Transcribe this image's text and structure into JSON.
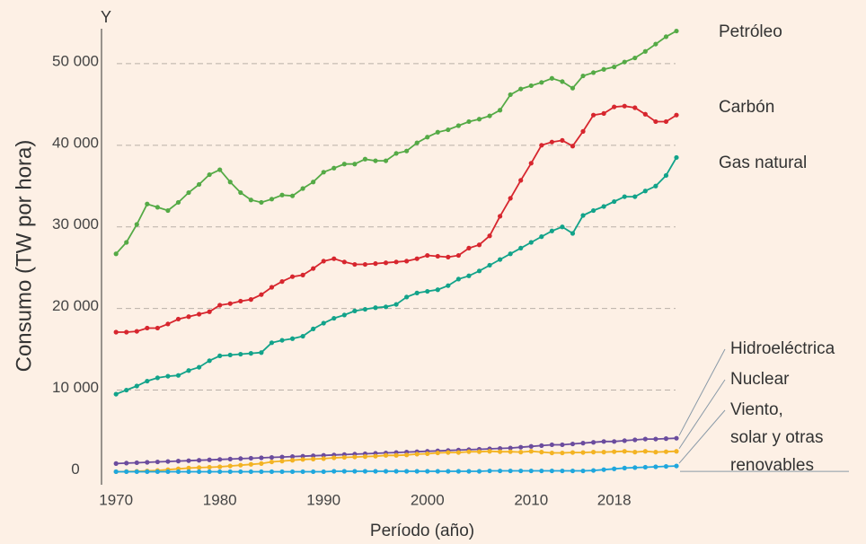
{
  "chart_data": {
    "type": "line",
    "axis_letter": "Y",
    "ylabel": "Consumo (TW por hora)",
    "xlabel": "Período (año)",
    "x": [
      1970,
      1971,
      1972,
      1973,
      1974,
      1975,
      1976,
      1977,
      1978,
      1979,
      1980,
      1981,
      1982,
      1983,
      1984,
      1985,
      1986,
      1987,
      1988,
      1989,
      1990,
      1991,
      1992,
      1993,
      1994,
      1995,
      1996,
      1997,
      1998,
      1999,
      2000,
      2001,
      2002,
      2003,
      2004,
      2005,
      2006,
      2007,
      2008,
      2009,
      2010,
      2011,
      2012,
      2013,
      2014,
      2015,
      2016,
      2017,
      2018,
      2019,
      2020,
      2021,
      2022,
      2023,
      2024
    ],
    "xlim": [
      1968.6,
      2024
    ],
    "xticks": [
      1970,
      1980,
      1990,
      2000,
      2010,
      2018
    ],
    "ylim": [
      -1600,
      54500
    ],
    "yticks": [
      0,
      {
        "value": 10000,
        "label": "10 000"
      },
      {
        "value": 20000,
        "label": "20 000"
      },
      {
        "value": 30000,
        "label": "30 000"
      },
      {
        "value": 40000,
        "label": "40 000"
      },
      {
        "value": 50000,
        "label": "50 000"
      }
    ],
    "grid": true,
    "series": [
      {
        "name": "Petróleo",
        "color": "#55aa46",
        "values": [
          26700,
          28100,
          30300,
          32800,
          32400,
          32000,
          33000,
          34200,
          35200,
          36400,
          37000,
          35500,
          34200,
          33300,
          33000,
          33400,
          33900,
          33800,
          34700,
          35500,
          36700,
          37200,
          37700,
          37700,
          38300,
          38100,
          38100,
          39000,
          39300,
          40300,
          41000,
          41600,
          41900,
          42400,
          42900,
          43200,
          43600,
          44300,
          46200,
          46900,
          47300,
          47700,
          48200,
          47800,
          47000,
          48500,
          48900,
          49300,
          49600,
          50200,
          50700,
          51500,
          52400,
          53300,
          54000
        ]
      },
      {
        "name": "Carbón",
        "color": "#d7262e",
        "values": [
          17100,
          17100,
          17200,
          17600,
          17600,
          18100,
          18700,
          19000,
          19300,
          19600,
          20400,
          20600,
          20900,
          21100,
          21700,
          22600,
          23300,
          23900,
          24100,
          24900,
          25800,
          26100,
          25700,
          25400,
          25400,
          25500,
          25600,
          25700,
          25800,
          26100,
          26500,
          26400,
          26300,
          26500,
          27400,
          27800,
          28900,
          31300,
          33500,
          35700,
          37800,
          40000,
          40400,
          40600,
          39900,
          41700,
          43700,
          43900,
          44700,
          44800,
          44600,
          43800,
          42900,
          42900,
          43700
        ]
      },
      {
        "name": "Gas natural",
        "color": "#12a38a",
        "values": [
          9500,
          10000,
          10500,
          11100,
          11500,
          11700,
          11800,
          12400,
          12800,
          13600,
          14200,
          14300,
          14400,
          14500,
          14600,
          15800,
          16100,
          16300,
          16600,
          17500,
          18200,
          18800,
          19200,
          19700,
          19900,
          20100,
          20200,
          20500,
          21400,
          21900,
          22100,
          22300,
          22800,
          23600,
          24000,
          24600,
          25300,
          26000,
          26700,
          27400,
          28100,
          28800,
          29500,
          30000,
          29200,
          31400,
          32000,
          32500,
          33100,
          33700,
          33700,
          34400,
          35000,
          36300,
          38500
        ]
      },
      {
        "name": "Hidroeléctrica",
        "color": "#6b4c9e",
        "values": [
          1000,
          1050,
          1100,
          1150,
          1200,
          1250,
          1300,
          1350,
          1400,
          1450,
          1500,
          1550,
          1600,
          1650,
          1700,
          1750,
          1800,
          1850,
          1900,
          1950,
          2000,
          2050,
          2100,
          2150,
          2200,
          2250,
          2300,
          2350,
          2400,
          2450,
          2500,
          2550,
          2600,
          2650,
          2700,
          2750,
          2800,
          2850,
          2900,
          3000,
          3100,
          3200,
          3300,
          3300,
          3400,
          3500,
          3600,
          3700,
          3700,
          3800,
          3900,
          4000,
          4000,
          4050,
          4100
        ]
      },
      {
        "name": "Nuclear",
        "color": "#f3b323",
        "values": [
          0,
          20,
          50,
          100,
          150,
          250,
          350,
          450,
          500,
          550,
          600,
          700,
          800,
          900,
          1000,
          1200,
          1300,
          1400,
          1500,
          1550,
          1600,
          1700,
          1750,
          1800,
          1850,
          1900,
          2000,
          2000,
          2050,
          2150,
          2200,
          2300,
          2350,
          2350,
          2450,
          2450,
          2500,
          2450,
          2450,
          2400,
          2500,
          2400,
          2300,
          2300,
          2350,
          2350,
          2400,
          2400,
          2450,
          2500,
          2400,
          2500,
          2400,
          2450,
          2500
        ]
      },
      {
        "name": "Viento,\nsolar y otras\nrenovables",
        "color": "#1fa7dd",
        "values": [
          0,
          0,
          0,
          0,
          0,
          0,
          0,
          0,
          0,
          0,
          0,
          0,
          0,
          0,
          0,
          0,
          0,
          0,
          0,
          0,
          0,
          50,
          50,
          50,
          50,
          50,
          50,
          50,
          50,
          50,
          50,
          50,
          50,
          50,
          50,
          50,
          100,
          100,
          100,
          100,
          100,
          100,
          100,
          100,
          100,
          100,
          150,
          250,
          350,
          450,
          500,
          550,
          600,
          650,
          700
        ]
      }
    ]
  }
}
